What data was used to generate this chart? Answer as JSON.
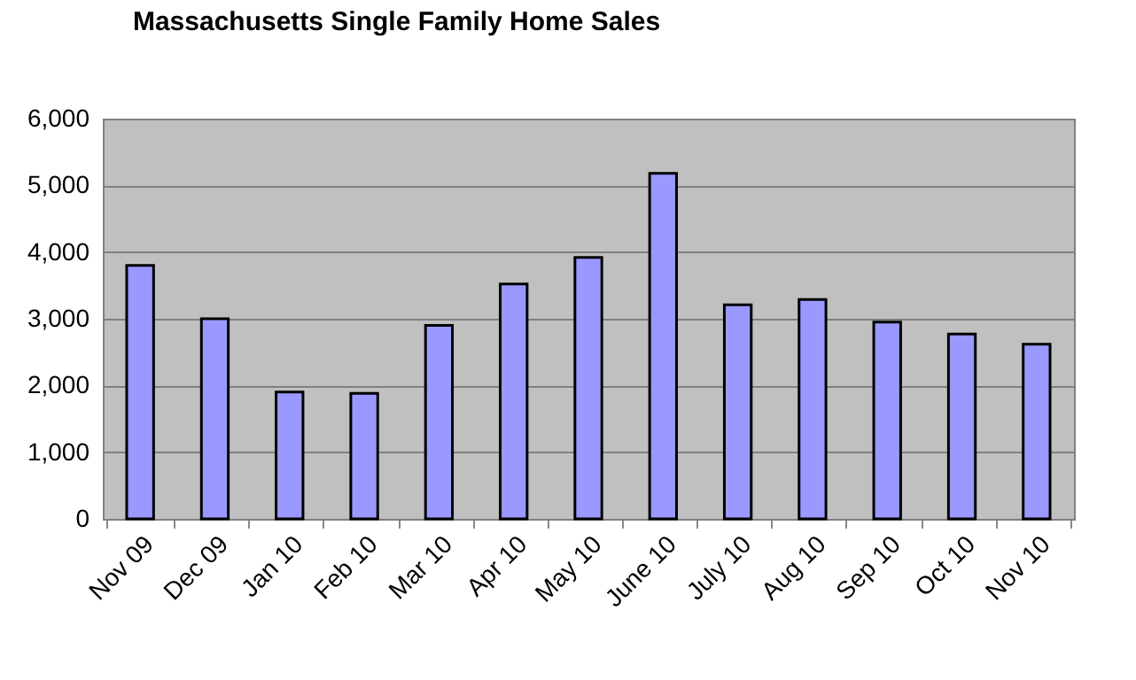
{
  "chart_data": {
    "type": "bar",
    "title": "Massachusetts Single Family Home Sales",
    "categories": [
      "Nov 09",
      "Dec 09",
      "Jan 10",
      "Feb 10",
      "Mar 10",
      "Apr 10",
      "May 10",
      "June 10",
      "July 10",
      "Aug 10",
      "Sep 10",
      "Oct 10",
      "Nov 10"
    ],
    "values": [
      3800,
      3000,
      1900,
      1880,
      2900,
      3520,
      3920,
      5180,
      3210,
      3290,
      2950,
      2770,
      2620
    ],
    "color": "#9999ff",
    "ylim": [
      0,
      6000
    ],
    "yticks": [
      0,
      {
        "value": 1000,
        "label": "1,000"
      },
      {
        "value": 2000,
        "label": "2,000"
      },
      {
        "value": 3000,
        "label": "3,000"
      },
      {
        "value": 4000,
        "label": "4,000"
      },
      {
        "value": 5000,
        "label": "5,000"
      },
      {
        "value": 6000,
        "label": "6,000"
      }
    ],
    "grid": "y"
  }
}
